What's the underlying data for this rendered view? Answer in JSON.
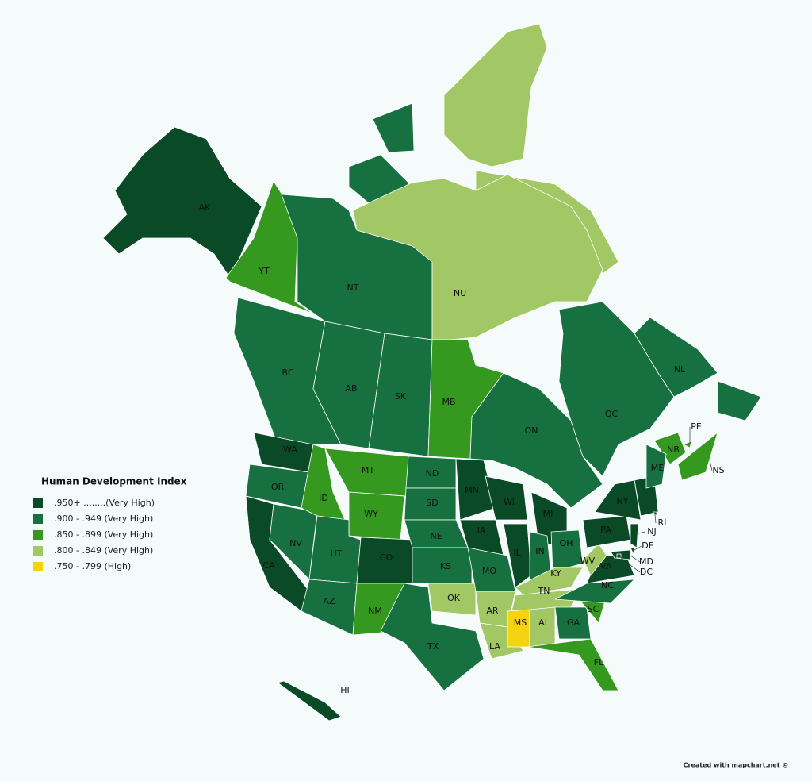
{
  "legend": {
    "title": "Human Development Index",
    "classes": [
      {
        "label": ".950+ ........(Very High)",
        "color": "#0b4a26"
      },
      {
        "label": ".900 - .949 (Very High)",
        "color": "#17703f"
      },
      {
        "label": ".850 - .899 (Very High)",
        "color": "#36991f"
      },
      {
        "label": ".800 - .849 (Very High)",
        "color": "#a2c865"
      },
      {
        "label": ".750 - .799 (High)",
        "color": "#f5d311"
      }
    ]
  },
  "regions": [
    {
      "label": "AK",
      "class": 0
    },
    {
      "label": "YT",
      "class": 2
    },
    {
      "label": "NT",
      "class": 1
    },
    {
      "label": "NU",
      "class": 3
    },
    {
      "label": "BC",
      "class": 1
    },
    {
      "label": "AB",
      "class": 1
    },
    {
      "label": "SK",
      "class": 1
    },
    {
      "label": "MB",
      "class": 2
    },
    {
      "label": "ON",
      "class": 1
    },
    {
      "label": "QC",
      "class": 1
    },
    {
      "label": "NL",
      "class": 1
    },
    {
      "label": "NB",
      "class": 2
    },
    {
      "label": "PE",
      "class": 2
    },
    {
      "label": "NS",
      "class": 2
    },
    {
      "label": "ME",
      "class": 1
    },
    {
      "label": "WA",
      "class": 0
    },
    {
      "label": "OR",
      "class": 1
    },
    {
      "label": "CA",
      "class": 0
    },
    {
      "label": "NV",
      "class": 1
    },
    {
      "label": "ID",
      "class": 2
    },
    {
      "label": "MT",
      "class": 2
    },
    {
      "label": "WY",
      "class": 2
    },
    {
      "label": "UT",
      "class": 1
    },
    {
      "label": "CO",
      "class": 0
    },
    {
      "label": "AZ",
      "class": 1
    },
    {
      "label": "NM",
      "class": 2
    },
    {
      "label": "TX",
      "class": 1
    },
    {
      "label": "ND",
      "class": 1
    },
    {
      "label": "SD",
      "class": 1
    },
    {
      "label": "NE",
      "class": 1
    },
    {
      "label": "KS",
      "class": 1
    },
    {
      "label": "OK",
      "class": 3
    },
    {
      "label": "MN",
      "class": 0
    },
    {
      "label": "IA",
      "class": 0
    },
    {
      "label": "MO",
      "class": 1
    },
    {
      "label": "AR",
      "class": 3
    },
    {
      "label": "LA",
      "class": 3
    },
    {
      "label": "WI",
      "class": 0
    },
    {
      "label": "IL",
      "class": 0
    },
    {
      "label": "MI",
      "class": 0
    },
    {
      "label": "IN",
      "class": 1
    },
    {
      "label": "OH",
      "class": 1
    },
    {
      "label": "KY",
      "class": 3
    },
    {
      "label": "TN",
      "class": 3
    },
    {
      "label": "MS",
      "class": 4
    },
    {
      "label": "AL",
      "class": 3
    },
    {
      "label": "GA",
      "class": 1
    },
    {
      "label": "FL",
      "class": 2
    },
    {
      "label": "SC",
      "class": 2
    },
    {
      "label": "NC",
      "class": 1
    },
    {
      "label": "VA",
      "class": 0
    },
    {
      "label": "WV",
      "class": 3
    },
    {
      "label": "PA",
      "class": 0
    },
    {
      "label": "NY",
      "class": 0
    },
    {
      "label": "NJ",
      "class": 0
    },
    {
      "label": "DE",
      "class": 0
    },
    {
      "label": "MD",
      "class": 0
    },
    {
      "label": "DC",
      "class": 0
    },
    {
      "label": "RI",
      "class": 0
    },
    {
      "label": "HI",
      "class": 0
    }
  ],
  "credit": "Created with mapchart.net ©"
}
